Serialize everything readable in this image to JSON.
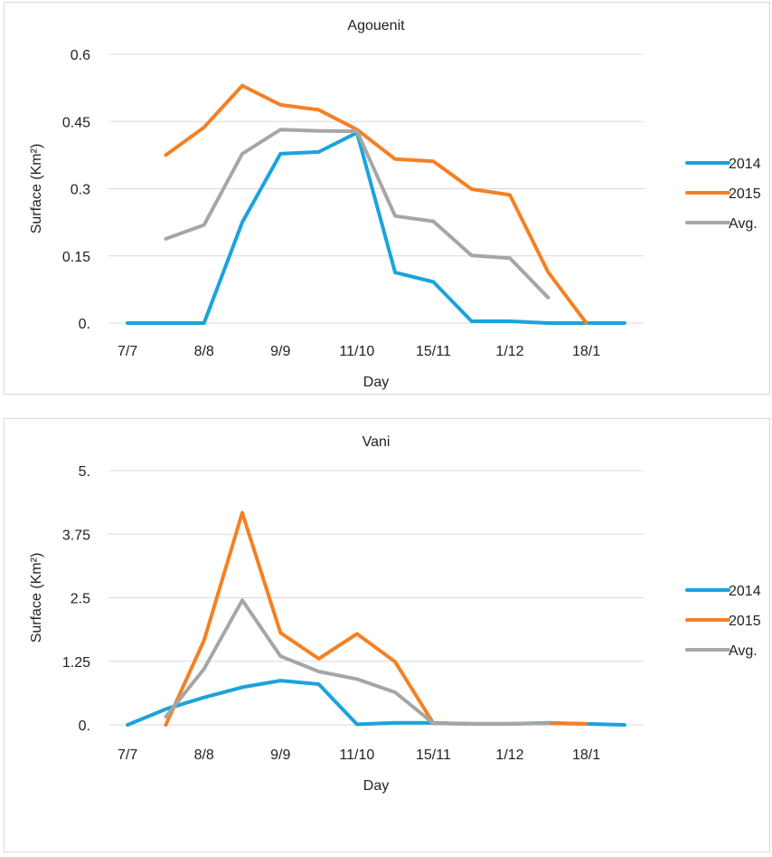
{
  "chart_data": [
    {
      "type": "line",
      "title": "Agouenit",
      "xlabel": "Day",
      "ylabel": "Surface (Km²)",
      "ylim": [
        0,
        0.6
      ],
      "yticks": [
        "0.",
        "0.15",
        "0.3",
        "0.45",
        "0.6"
      ],
      "x": [
        "7/7",
        "",
        "8/8",
        "",
        "9/9",
        "",
        "11/10",
        "",
        "15/11",
        "",
        "1/12",
        "",
        "18/1",
        ""
      ],
      "legend_position": "right",
      "grid": true,
      "series": [
        {
          "name": "2014",
          "color": "#1aa3dd",
          "values": [
            0,
            0,
            0,
            0.225,
            0.378,
            0.382,
            0.425,
            0.113,
            0.092,
            0.004,
            0.004,
            0,
            0,
            0
          ]
        },
        {
          "name": "2015",
          "color": "#f58024",
          "values": [
            null,
            0.375,
            0.437,
            0.53,
            0.487,
            0.476,
            0.432,
            0.366,
            0.361,
            0.299,
            0.286,
            0.114,
            0,
            null
          ]
        },
        {
          "name": "Avg.",
          "color": "#a6a6a6",
          "values": [
            null,
            0.188,
            0.219,
            0.378,
            0.432,
            0.429,
            0.428,
            0.239,
            0.227,
            0.151,
            0.145,
            0.057,
            null,
            null
          ]
        }
      ]
    },
    {
      "type": "line",
      "title": "Vani",
      "xlabel": "Day",
      "ylabel": "Surface (Km²)",
      "ylim": [
        0,
        5
      ],
      "yticks": [
        "0.",
        "1.25",
        "2.5",
        "3.75",
        "5."
      ],
      "x": [
        "7/7",
        "",
        "8/8",
        "",
        "9/9",
        "",
        "11/10",
        "",
        "15/11",
        "",
        "1/12",
        "",
        "18/1",
        ""
      ],
      "legend_position": "right",
      "grid": true,
      "series": [
        {
          "name": "2014",
          "color": "#1aa3dd",
          "values": [
            0,
            0.31,
            0.54,
            0.74,
            0.87,
            0.8,
            0.01,
            0.04,
            0.04,
            0.02,
            0.02,
            0.04,
            0.02,
            0
          ]
        },
        {
          "name": "2015",
          "color": "#f58024",
          "values": [
            null,
            0,
            1.66,
            4.17,
            1.81,
            1.3,
            1.79,
            1.24,
            0.03,
            0.02,
            0.02,
            0.03,
            0.02,
            null
          ]
        },
        {
          "name": "Avg.",
          "color": "#a6a6a6",
          "values": [
            null,
            0.16,
            1.1,
            2.45,
            1.35,
            1.05,
            0.9,
            0.64,
            0.03,
            0.02,
            0.02,
            0.03,
            null,
            null
          ]
        }
      ]
    }
  ]
}
